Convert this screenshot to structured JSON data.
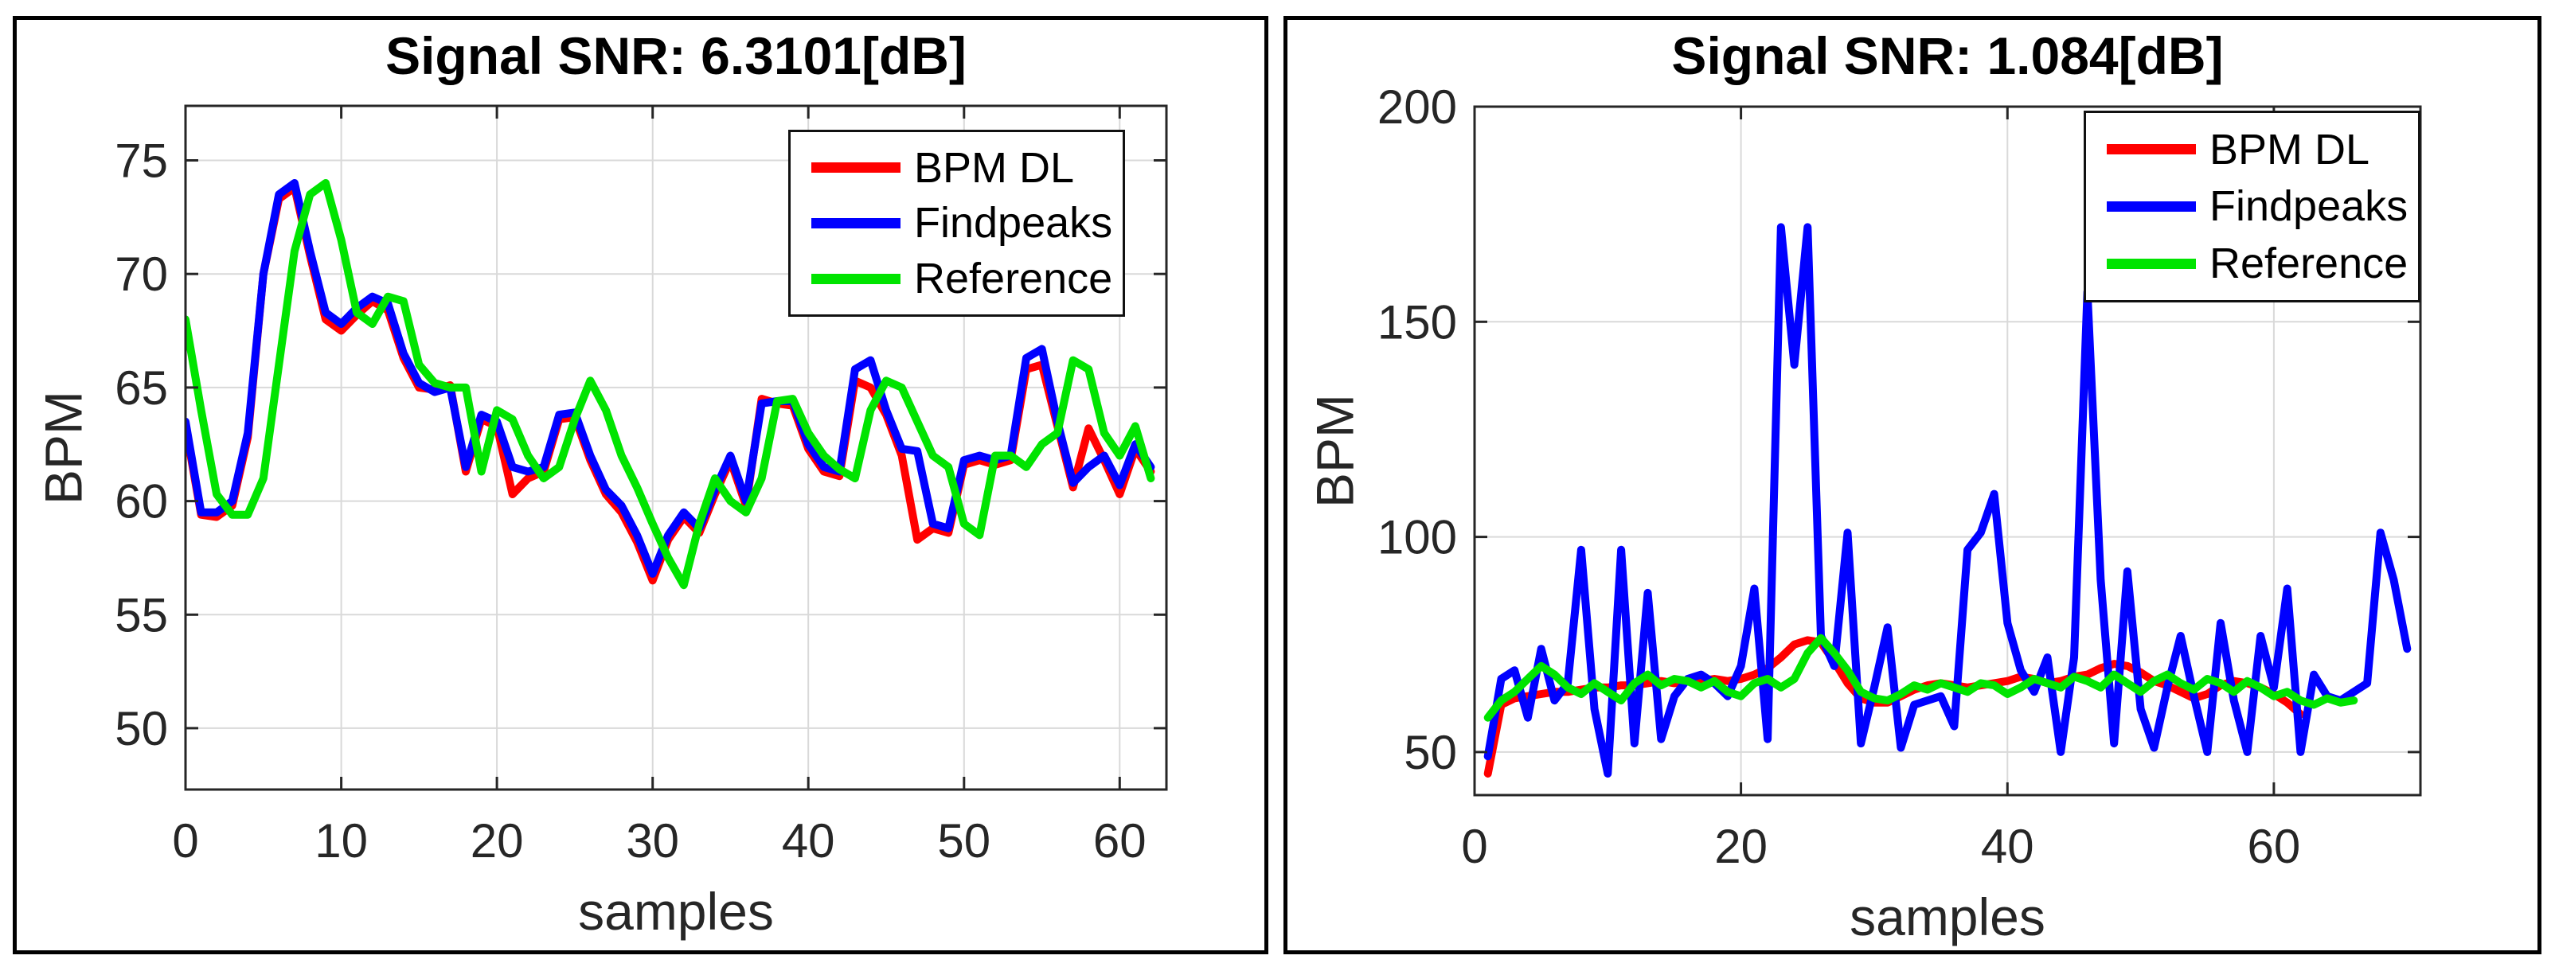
{
  "chart_data": [
    {
      "type": "line",
      "title": "Signal SNR: 6.3101[dB]",
      "xlabel": "samples",
      "ylabel": "BPM",
      "xlim": [
        0,
        63
      ],
      "ylim": [
        47.3,
        77.4
      ],
      "xticks": [
        0,
        10,
        20,
        30,
        40,
        50,
        60
      ],
      "yticks": [
        50,
        55,
        60,
        65,
        70,
        75
      ],
      "grid": true,
      "legend_position": "top-right-inside",
      "x_start": 0,
      "series": [
        {
          "name": "BPM DL",
          "color": "#ff0000",
          "values": [
            63.3,
            59.4,
            59.3,
            59.8,
            62.8,
            70,
            73.3,
            73.8,
            70.8,
            68,
            67.5,
            68.2,
            68.8,
            68.4,
            66.3,
            65,
            64.9,
            65.1,
            61.3,
            63.6,
            63.3,
            60.3,
            61,
            61.3,
            63.6,
            63.7,
            61.8,
            60.3,
            59.5,
            58.2,
            56.5,
            58.3,
            59.3,
            58.6,
            60.3,
            61.8,
            59.8,
            64.5,
            64.3,
            64.2,
            62.3,
            61.3,
            61.1,
            65.3,
            65,
            63.8,
            62,
            58.3,
            58.8,
            58.6,
            61.6,
            61.8,
            61.6,
            61.8,
            65.8,
            66,
            63.3,
            60.6,
            63.2,
            61.8,
            60.3,
            62.3,
            61.3
          ]
        },
        {
          "name": "Findpeaks",
          "color": "#0000ff",
          "values": [
            63.5,
            59.5,
            59.5,
            60,
            63,
            70,
            73.5,
            74,
            71,
            68.3,
            67.8,
            68.5,
            69,
            68.7,
            66.5,
            65.2,
            64.8,
            65,
            61.5,
            63.8,
            63.5,
            61.5,
            61.3,
            61.5,
            63.8,
            63.9,
            62,
            60.5,
            59.8,
            58.5,
            56.8,
            58.5,
            59.5,
            58.8,
            60.5,
            62,
            60,
            64.3,
            64.4,
            64.4,
            62.5,
            61.5,
            61.3,
            65.8,
            66.2,
            64,
            62.3,
            62.2,
            59,
            58.8,
            61.8,
            62,
            61.8,
            62,
            66.3,
            66.7,
            63.5,
            60.8,
            61.5,
            62,
            60.7,
            62.5,
            61.5
          ]
        },
        {
          "name": "Reference",
          "color": "#00e400",
          "values": [
            68,
            64,
            60.3,
            59.4,
            59.4,
            61,
            66,
            71,
            73.5,
            74,
            71.5,
            68.3,
            67.8,
            69,
            68.8,
            66,
            65.2,
            65,
            65,
            61.3,
            64,
            63.6,
            62,
            61,
            61.5,
            63.6,
            65.3,
            64,
            62,
            60.6,
            59,
            57.5,
            56.3,
            59,
            61,
            60,
            59.5,
            61,
            64.4,
            64.5,
            63,
            62,
            61.4,
            61,
            64,
            65.3,
            65,
            63.5,
            62,
            61.5,
            59,
            58.5,
            62,
            62,
            61.5,
            62.5,
            63,
            66.2,
            65.8,
            63,
            62,
            63.3,
            61
          ]
        }
      ]
    },
    {
      "type": "line",
      "title": "Signal SNR: 1.084[dB]",
      "xlabel": "samples",
      "ylabel": "BPM",
      "xlim": [
        0,
        71
      ],
      "ylim": [
        40,
        200
      ],
      "xticks": [
        0,
        20,
        40,
        60
      ],
      "yticks": [
        50,
        100,
        150,
        200
      ],
      "grid": true,
      "legend_position": "top-right-inside",
      "x_start": 1,
      "series": [
        {
          "name": "BPM DL",
          "color": "#ff0000",
          "values": [
            45,
            61,
            62.5,
            63,
            63.5,
            64,
            64,
            64.5,
            65,
            65,
            65.5,
            65.5,
            66,
            66.5,
            66,
            66.5,
            66.5,
            67,
            66.5,
            67,
            68,
            69.5,
            72,
            75,
            76,
            75.5,
            71,
            66,
            62.5,
            61.5,
            61.5,
            63,
            64.5,
            65.5,
            66,
            65.5,
            65,
            65.5,
            66,
            66.5,
            67.5,
            67,
            66,
            66.5,
            67.5,
            68,
            69.5,
            70.5,
            70,
            68.5,
            66.5,
            65.5,
            64,
            62.5,
            63.5,
            65.5,
            66.5,
            66,
            65,
            63.5,
            61.5,
            58.8
          ]
        },
        {
          "name": "Findpeaks",
          "color": "#0000ff",
          "values": [
            49,
            67,
            69,
            58,
            74,
            62,
            66,
            97,
            60,
            45,
            97,
            52,
            87,
            53,
            63,
            67,
            68,
            66,
            63,
            70,
            88,
            53,
            172,
            140,
            172,
            77,
            70,
            101,
            52,
            65,
            79,
            51,
            61,
            62,
            63,
            56,
            97,
            101,
            110,
            80,
            69,
            64,
            72,
            50,
            72,
            157,
            90,
            52,
            92,
            60,
            51,
            65,
            77,
            63,
            50,
            80,
            62,
            50,
            77,
            65,
            88,
            50,
            68,
            63,
            62,
            64,
            66,
            101,
            90,
            74
          ]
        },
        {
          "name": "Reference",
          "color": "#00e400",
          "values": [
            58,
            62,
            64,
            67,
            70,
            68,
            65,
            63.5,
            66,
            64,
            62,
            66,
            68,
            65.5,
            67,
            66.5,
            65,
            66.5,
            64,
            63,
            66,
            67,
            65,
            67,
            73,
            76.5,
            73,
            69,
            64,
            62.5,
            62,
            63.5,
            65.5,
            64.5,
            66,
            65,
            64,
            66,
            65.5,
            63.5,
            65,
            67,
            66,
            65,
            67.5,
            66.5,
            65,
            68,
            66,
            64,
            66.5,
            68,
            66,
            64.5,
            67,
            66,
            64,
            66.5,
            65,
            63,
            64,
            62,
            61,
            62.5,
            61.5,
            62
          ]
        }
      ]
    }
  ],
  "style": {
    "axis_color": "#262626",
    "grid_color": "#d9d9d9",
    "frame_color": "#000000",
    "plot_background": "#ffffff"
  }
}
